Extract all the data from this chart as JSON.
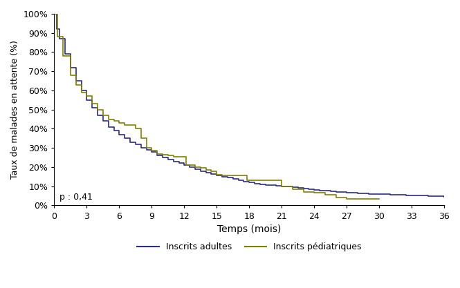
{
  "title": "",
  "xlabel": "Temps (mois)",
  "ylabel": "Taux de malades en attente (%)",
  "xlim": [
    0,
    36
  ],
  "ylim": [
    0,
    1.0
  ],
  "xticks": [
    0,
    3,
    6,
    9,
    12,
    15,
    18,
    21,
    24,
    27,
    30,
    33,
    36
  ],
  "yticks": [
    0.0,
    0.1,
    0.2,
    0.3,
    0.4,
    0.5,
    0.6,
    0.7,
    0.8,
    0.9,
    1.0
  ],
  "ytick_labels": [
    "0%",
    "10%",
    "20%",
    "30%",
    "40%",
    "50%",
    "60%",
    "70%",
    "80%",
    "90%",
    "100%"
  ],
  "annotation": "p : 0,41",
  "adult_color": "#2b2b8a",
  "pediatric_color": "#808000",
  "legend_adult": "Inscrits adultes",
  "legend_pediatric": "Inscrits pédiatriques",
  "adult_x": [
    0,
    0.2,
    0.5,
    1,
    1.5,
    2,
    2.5,
    3,
    3.5,
    4,
    4.5,
    5,
    5.5,
    6,
    6.5,
    7,
    7.5,
    8,
    8.5,
    9,
    9.5,
    10,
    10.5,
    11,
    11.5,
    12,
    12.5,
    13,
    13.5,
    14,
    14.5,
    15,
    15.5,
    16,
    16.5,
    17,
    17.5,
    18,
    18.5,
    19,
    19.5,
    20,
    20.5,
    21,
    21.5,
    22,
    22.5,
    23,
    23.5,
    24,
    24.5,
    25,
    25.5,
    26,
    26.5,
    27,
    27.5,
    28,
    28.5,
    29,
    29.5,
    30,
    30.5,
    31,
    31.5,
    32,
    32.5,
    33,
    33.5,
    34,
    34.5,
    35,
    35.5,
    36
  ],
  "adult_y": [
    1.0,
    0.92,
    0.87,
    0.79,
    0.72,
    0.65,
    0.6,
    0.55,
    0.51,
    0.47,
    0.44,
    0.41,
    0.39,
    0.37,
    0.35,
    0.33,
    0.32,
    0.3,
    0.29,
    0.28,
    0.26,
    0.25,
    0.24,
    0.23,
    0.22,
    0.21,
    0.2,
    0.19,
    0.18,
    0.17,
    0.165,
    0.155,
    0.15,
    0.145,
    0.14,
    0.13,
    0.125,
    0.12,
    0.115,
    0.11,
    0.108,
    0.105,
    0.102,
    0.1,
    0.098,
    0.094,
    0.091,
    0.088,
    0.085,
    0.082,
    0.079,
    0.076,
    0.073,
    0.071,
    0.069,
    0.067,
    0.065,
    0.063,
    0.062,
    0.061,
    0.06,
    0.059,
    0.058,
    0.057,
    0.056,
    0.055,
    0.054,
    0.053,
    0.052,
    0.051,
    0.05,
    0.049,
    0.048,
    0.046
  ],
  "ped_x": [
    0,
    0.3,
    0.8,
    1.5,
    2,
    2.5,
    3,
    3.5,
    4,
    4.5,
    5,
    5.5,
    6,
    6.5,
    7,
    7.5,
    8,
    8.5,
    9,
    9.2,
    9.5,
    10,
    10.5,
    11,
    11.5,
    12,
    12.2,
    12.5,
    13,
    13.5,
    14,
    14.5,
    15,
    15.5,
    16,
    16.5,
    17,
    17.5,
    17.8,
    18,
    18.5,
    19,
    19.5,
    20,
    20.5,
    21,
    22,
    23,
    24,
    25,
    26,
    27,
    28,
    29,
    30
  ],
  "ped_y": [
    1.0,
    0.88,
    0.78,
    0.68,
    0.63,
    0.59,
    0.57,
    0.53,
    0.5,
    0.47,
    0.45,
    0.44,
    0.43,
    0.42,
    0.42,
    0.4,
    0.35,
    0.3,
    0.285,
    0.285,
    0.27,
    0.265,
    0.26,
    0.255,
    0.255,
    0.255,
    0.21,
    0.21,
    0.2,
    0.195,
    0.185,
    0.18,
    0.16,
    0.155,
    0.155,
    0.155,
    0.155,
    0.155,
    0.13,
    0.13,
    0.13,
    0.13,
    0.13,
    0.13,
    0.13,
    0.1,
    0.085,
    0.07,
    0.065,
    0.055,
    0.04,
    0.033,
    0.033,
    0.033,
    0.033
  ]
}
